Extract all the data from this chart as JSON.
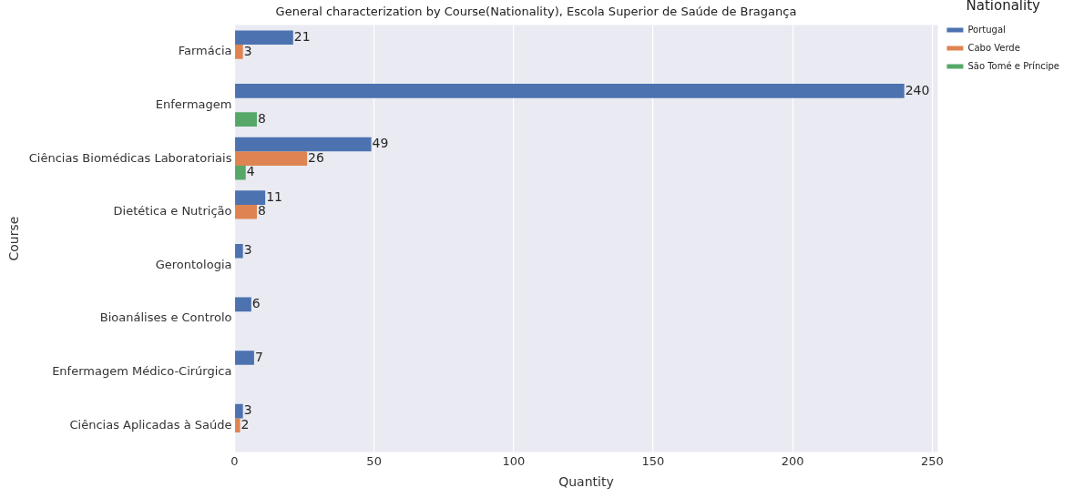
{
  "chart_data": {
    "type": "bar",
    "orientation": "horizontal",
    "title": "General characterization by Course(Nationality), Escola Superior de Saúde de Bragança",
    "xlabel": "Quantity",
    "ylabel": "Course",
    "legend_title": "Nationality",
    "categories": [
      "Farmácia",
      "Enfermagem",
      "Ciências Biomédicas Laboratoriais",
      "Dietética e Nutrição",
      "Gerontologia",
      "Bioanálises e Controlo",
      "Enfermagem Médico-Cirúrgica",
      "Ciências Aplicadas à Saúde"
    ],
    "series": [
      {
        "name": "Portugal",
        "color": "#4c72b0",
        "values": [
          21,
          240,
          49,
          11,
          3,
          6,
          7,
          3
        ]
      },
      {
        "name": "Cabo Verde",
        "color": "#dd8452",
        "values": [
          3,
          null,
          26,
          8,
          null,
          null,
          null,
          2
        ]
      },
      {
        "name": "São Tomé e Príncipe",
        "color": "#55a868",
        "values": [
          null,
          8,
          4,
          null,
          null,
          null,
          null,
          null
        ]
      }
    ],
    "xlim": [
      0,
      252
    ],
    "xticks": [
      0,
      50,
      100,
      150,
      200,
      250
    ],
    "grid": "x",
    "legend": "top right",
    "data_labels": true
  }
}
